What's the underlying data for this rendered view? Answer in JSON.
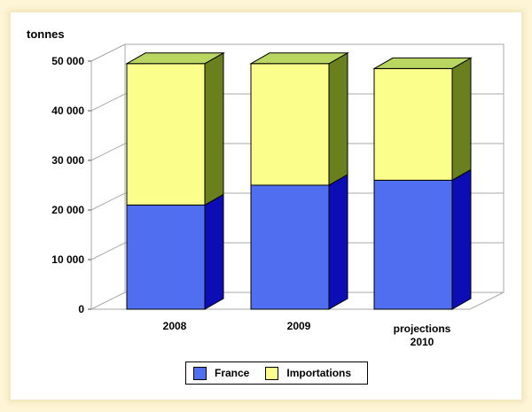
{
  "chart_data": {
    "type": "bar",
    "stacked": true,
    "three_d": true,
    "y_unit_label": "tonnes",
    "categories": [
      "2008",
      "2009",
      "projections 2010"
    ],
    "series": [
      {
        "name": "France",
        "values": [
          21000,
          25000,
          26000
        ],
        "color": "#4f6ff0",
        "side_color": "#0d0db5"
      },
      {
        "name": "Importations",
        "values": [
          28500,
          24500,
          22500
        ],
        "color": "#fbfe8a",
        "side_color": "#6a7f1e",
        "top_color": "#b9d660"
      }
    ],
    "ylim": [
      0,
      50000
    ],
    "yticks": [
      0,
      10000,
      20000,
      30000,
      40000,
      50000
    ],
    "ytick_labels": [
      "0",
      "10 000",
      "20 000",
      "30 000",
      "40 000",
      "50 000"
    ],
    "grid": true,
    "legend_position": "bottom"
  }
}
